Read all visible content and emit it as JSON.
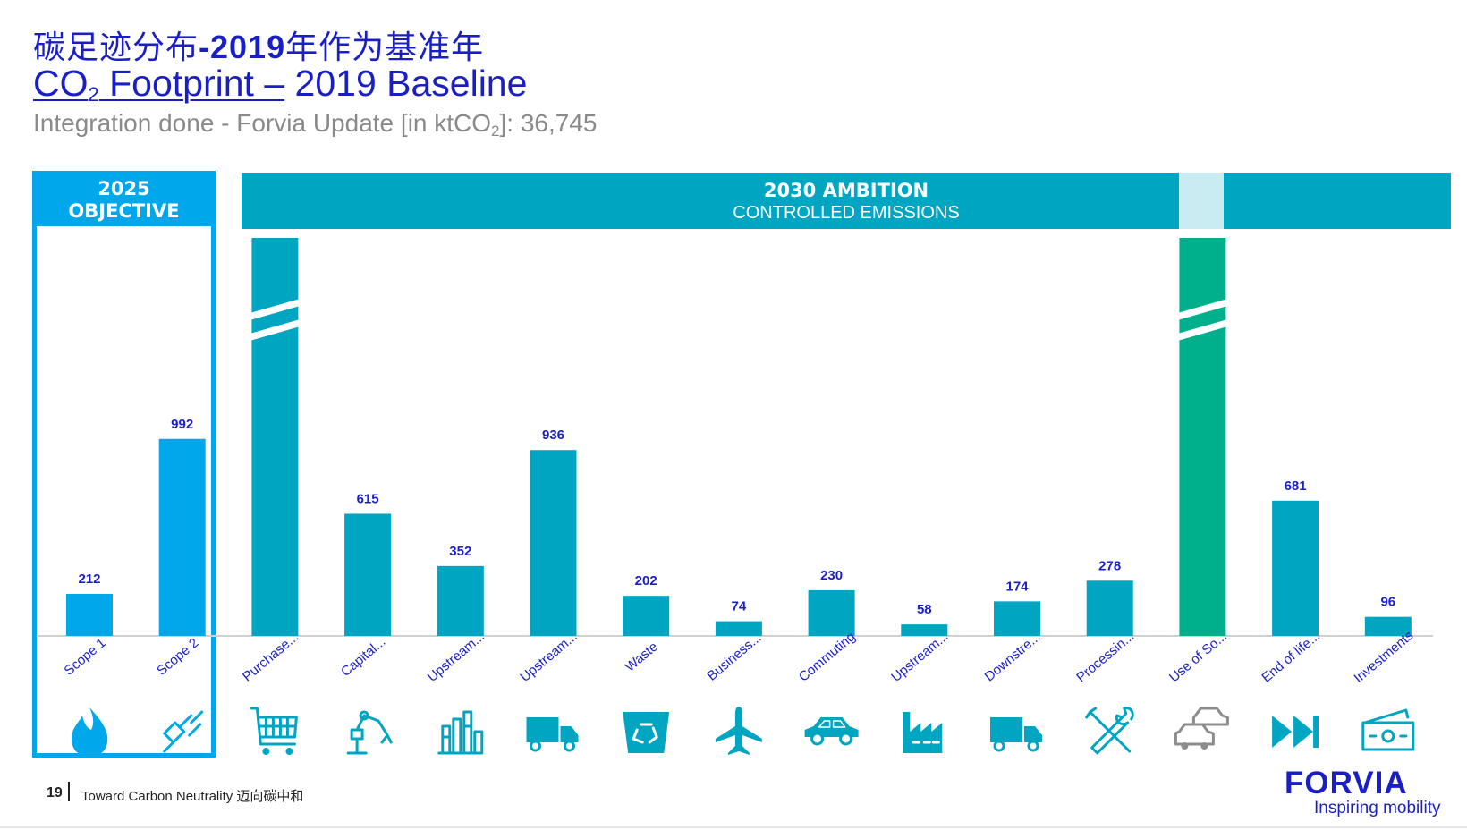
{
  "header": {
    "title_cn_1": "碳足迹分布",
    "title_cn_bold": "-2019",
    "title_cn_2": "年作为基准年",
    "title_en_co": "CO",
    "title_en_sub": "2",
    "title_en_rest": " Footprint –",
    "title_en_tail": " 2019 Baseline",
    "subtitle_1": "Integration done - Forvia Update [in ktCO",
    "subtitle_sub": "2",
    "subtitle_2": "]: 36,745"
  },
  "groups": {
    "objective_line1": "2025",
    "objective_line2": "OBJECTIVE",
    "ambition_line1": "2030 AMBITION",
    "ambition_line2": "CONTROLLED EMISSIONS"
  },
  "chart_data": {
    "type": "bar",
    "unit": "ktCO2",
    "categories": [
      "Scope 1",
      "Scope 2",
      "Purchase...",
      "Capital...",
      "Upstream...",
      "Upstream...",
      "Waste",
      "Business...",
      "Commuting",
      "Upstream...",
      "Downstre...",
      "Processin...",
      "Use of So...",
      "End of life...",
      "Investments"
    ],
    "values": [
      212,
      992,
      null,
      615,
      352,
      936,
      202,
      74,
      230,
      58,
      174,
      278,
      null,
      681,
      96
    ],
    "value_labels": [
      "212",
      "992",
      "",
      "615",
      "352",
      "936",
      "202",
      "74",
      "230",
      "58",
      "174",
      "278",
      "",
      "681",
      "96"
    ],
    "broken_axis_bars": [
      "Purchase...",
      "Use of So..."
    ],
    "groups": [
      "2025 OBJECTIVE",
      "2025 OBJECTIVE",
      "2030 AMBITION",
      "2030 AMBITION",
      "2030 AMBITION",
      "2030 AMBITION",
      "2030 AMBITION",
      "2030 AMBITION",
      "2030 AMBITION",
      "2030 AMBITION",
      "2030 AMBITION",
      "2030 AMBITION",
      "2030 AMBITION",
      "2030 AMBITION",
      "2030 AMBITION"
    ],
    "icons": [
      "flame-icon",
      "plug-icon",
      "shopping-cart-icon",
      "robot-arm-icon",
      "refinery-icon",
      "truck-icon",
      "recycle-bin-icon",
      "airplane-icon",
      "car-icon",
      "factory-icon",
      "truck-icon",
      "tools-icon",
      "cars-icon",
      "fast-forward-icon",
      "money-icon"
    ],
    "colors": {
      "scope": "#00a7ea",
      "ambition": "#00a5c2",
      "use_of_sold": "#00b08d",
      "use_icon": "#8c8c8c",
      "value_label": "#1a1fc4"
    },
    "ylim": [
      0,
      1000
    ],
    "grid": false,
    "legend": "none"
  },
  "footer": {
    "page": "19",
    "text": "Toward Carbon Neutrality 迈向碳中和"
  },
  "brand": {
    "logo": "FORVIA",
    "tagline": "Inspiring mobility"
  }
}
